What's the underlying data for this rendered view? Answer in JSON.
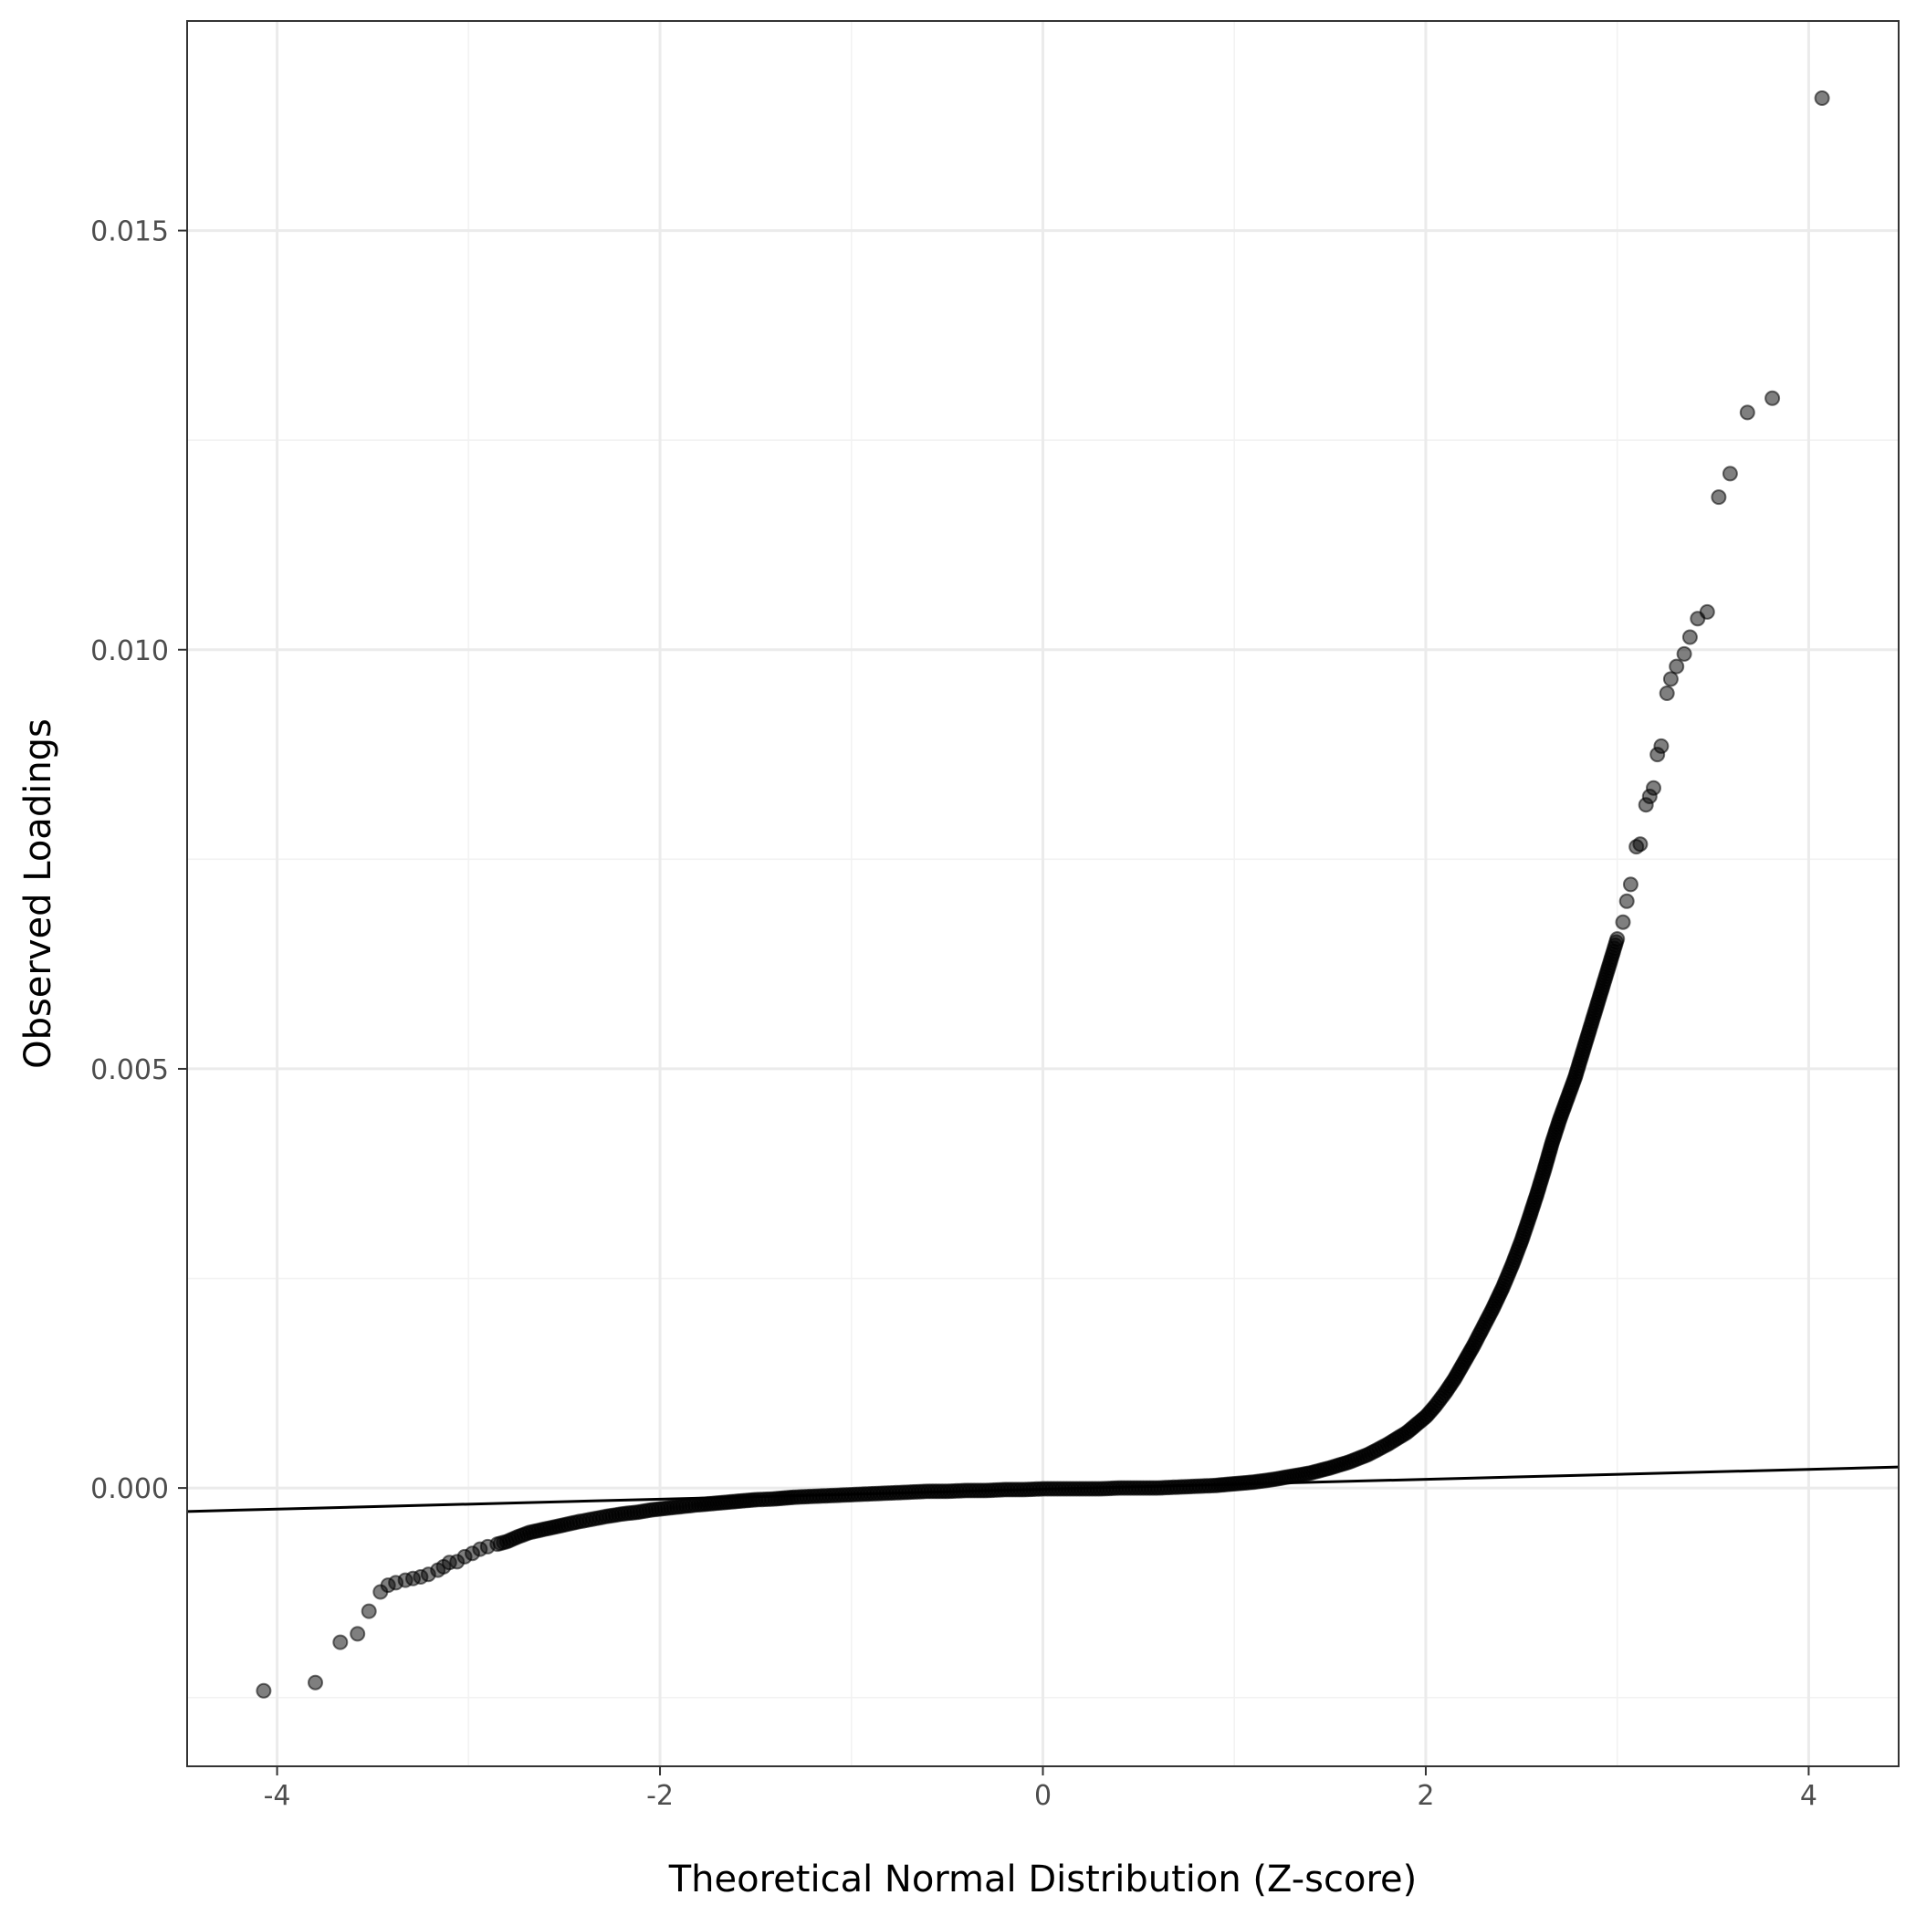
{
  "chart_data": {
    "type": "scatter",
    "xlabel": "Theoretical Normal Distribution (Z-score)",
    "ylabel": "Observed Loadings",
    "xlim": [
      -4.47,
      4.47
    ],
    "ylim": [
      -0.00332,
      0.0175
    ],
    "x_ticks": [
      -4,
      -2,
      0,
      2,
      4
    ],
    "x_tick_labels": [
      "-4",
      "-2",
      "0",
      "2",
      "4"
    ],
    "y_ticks": [
      0.0,
      0.005,
      0.01,
      0.015
    ],
    "y_tick_labels": [
      "0.000",
      "0.005",
      "0.010",
      "0.015"
    ],
    "grid": true,
    "reference_line": {
      "x": [
        -4.47,
        4.47
      ],
      "y": [
        -0.00028,
        0.00025
      ]
    },
    "series": [
      {
        "points": [
          [
            -4.07,
            -0.00242
          ],
          [
            -3.8,
            -0.00232
          ],
          [
            -3.67,
            -0.00184
          ],
          [
            -3.58,
            -0.00174
          ],
          [
            -3.52,
            -0.00147
          ],
          [
            -3.46,
            -0.00124
          ],
          [
            -3.42,
            -0.00116
          ],
          [
            -3.38,
            -0.00113
          ],
          [
            -3.33,
            -0.0011
          ],
          [
            -3.29,
            -0.00108
          ],
          [
            -3.25,
            -0.00106
          ],
          [
            -3.21,
            -0.00103
          ],
          [
            -3.16,
            -0.00098
          ],
          [
            -3.13,
            -0.00094
          ],
          [
            -3.1,
            -0.00089
          ],
          [
            -3.06,
            -0.00088
          ],
          [
            -3.02,
            -0.00082
          ],
          [
            -2.98,
            -0.00078
          ],
          [
            -2.94,
            -0.00073
          ],
          [
            -2.9,
            -0.0007
          ],
          [
            -2.85,
            -0.00067
          ],
          [
            -2.8,
            -0.00064
          ],
          [
            -2.74,
            -0.00058
          ],
          [
            -2.68,
            -0.00053
          ],
          [
            -2.62,
            -0.0005
          ],
          [
            -2.56,
            -0.00047
          ],
          [
            -2.5,
            -0.00044
          ],
          [
            -2.42,
            -0.0004
          ],
          [
            -2.35,
            -0.00037
          ],
          [
            -2.28,
            -0.00034
          ],
          [
            -2.2,
            -0.00031
          ],
          [
            -2.12,
            -0.00029
          ],
          [
            -2.04,
            -0.00026
          ],
          [
            -1.96,
            -0.00024
          ],
          [
            -1.88,
            -0.00022
          ],
          [
            -1.8,
            -0.0002
          ],
          [
            -1.7,
            -0.00018
          ],
          [
            -1.6,
            -0.00016
          ],
          [
            -1.5,
            -0.00014
          ],
          [
            -1.4,
            -0.00013
          ],
          [
            -1.3,
            -0.00011
          ],
          [
            -1.2,
            -0.0001
          ],
          [
            -1.1,
            -9e-05
          ],
          [
            -1.0,
            -8e-05
          ],
          [
            -0.9,
            -7e-05
          ],
          [
            -0.8,
            -6e-05
          ],
          [
            -0.7,
            -5e-05
          ],
          [
            -0.6,
            -4e-05
          ],
          [
            -0.5,
            -4e-05
          ],
          [
            -0.4,
            -3e-05
          ],
          [
            -0.3,
            -3e-05
          ],
          [
            -0.2,
            -2e-05
          ],
          [
            -0.1,
            -2e-05
          ],
          [
            0.0,
            -1e-05
          ],
          [
            0.1,
            -1e-05
          ],
          [
            0.2,
            -1e-05
          ],
          [
            0.3,
            -1e-05
          ],
          [
            0.4,
            0.0
          ],
          [
            0.5,
            0.0
          ],
          [
            0.6,
            0.0
          ],
          [
            0.7,
            1e-05
          ],
          [
            0.8,
            2e-05
          ],
          [
            0.9,
            3e-05
          ],
          [
            1.0,
            5e-05
          ],
          [
            1.1,
            7e-05
          ],
          [
            1.2,
            0.0001
          ],
          [
            1.3,
            0.00014
          ],
          [
            1.4,
            0.00018
          ],
          [
            1.5,
            0.00024
          ],
          [
            1.6,
            0.00031
          ],
          [
            1.7,
            0.0004
          ],
          [
            1.8,
            0.00052
          ],
          [
            1.9,
            0.00066
          ],
          [
            2.0,
            0.00085
          ],
          [
            2.05,
            0.00098
          ],
          [
            2.1,
            0.00113
          ],
          [
            2.15,
            0.0013
          ],
          [
            2.2,
            0.0015
          ],
          [
            2.25,
            0.0017
          ],
          [
            2.3,
            0.00192
          ],
          [
            2.35,
            0.00214
          ],
          [
            2.4,
            0.00238
          ],
          [
            2.45,
            0.00265
          ],
          [
            2.5,
            0.00295
          ],
          [
            2.54,
            0.00322
          ],
          [
            2.58,
            0.0035
          ],
          [
            2.62,
            0.0038
          ],
          [
            2.66,
            0.00412
          ],
          [
            2.7,
            0.0044
          ],
          [
            2.74,
            0.00465
          ],
          [
            2.78,
            0.0049
          ],
          [
            2.82,
            0.0052
          ],
          [
            2.86,
            0.0055
          ],
          [
            2.9,
            0.0058
          ],
          [
            2.94,
            0.0061
          ],
          [
            2.98,
            0.0064
          ],
          [
            3.0,
            0.00655
          ],
          [
            3.03,
            0.00675
          ],
          [
            3.05,
            0.007
          ],
          [
            3.07,
            0.0072
          ],
          [
            3.1,
            0.00765
          ],
          [
            3.12,
            0.00768
          ],
          [
            3.15,
            0.00815
          ],
          [
            3.17,
            0.00825
          ],
          [
            3.19,
            0.00835
          ],
          [
            3.21,
            0.00875
          ],
          [
            3.23,
            0.00885
          ],
          [
            3.26,
            0.00948
          ],
          [
            3.28,
            0.00965
          ],
          [
            3.31,
            0.0098
          ],
          [
            3.35,
            0.00995
          ],
          [
            3.38,
            0.01015
          ],
          [
            3.42,
            0.01037
          ],
          [
            3.47,
            0.01045
          ],
          [
            3.53,
            0.01182
          ],
          [
            3.59,
            0.0121
          ],
          [
            3.68,
            0.01283
          ],
          [
            3.81,
            0.013
          ],
          [
            4.07,
            0.01658
          ]
        ]
      }
    ]
  }
}
